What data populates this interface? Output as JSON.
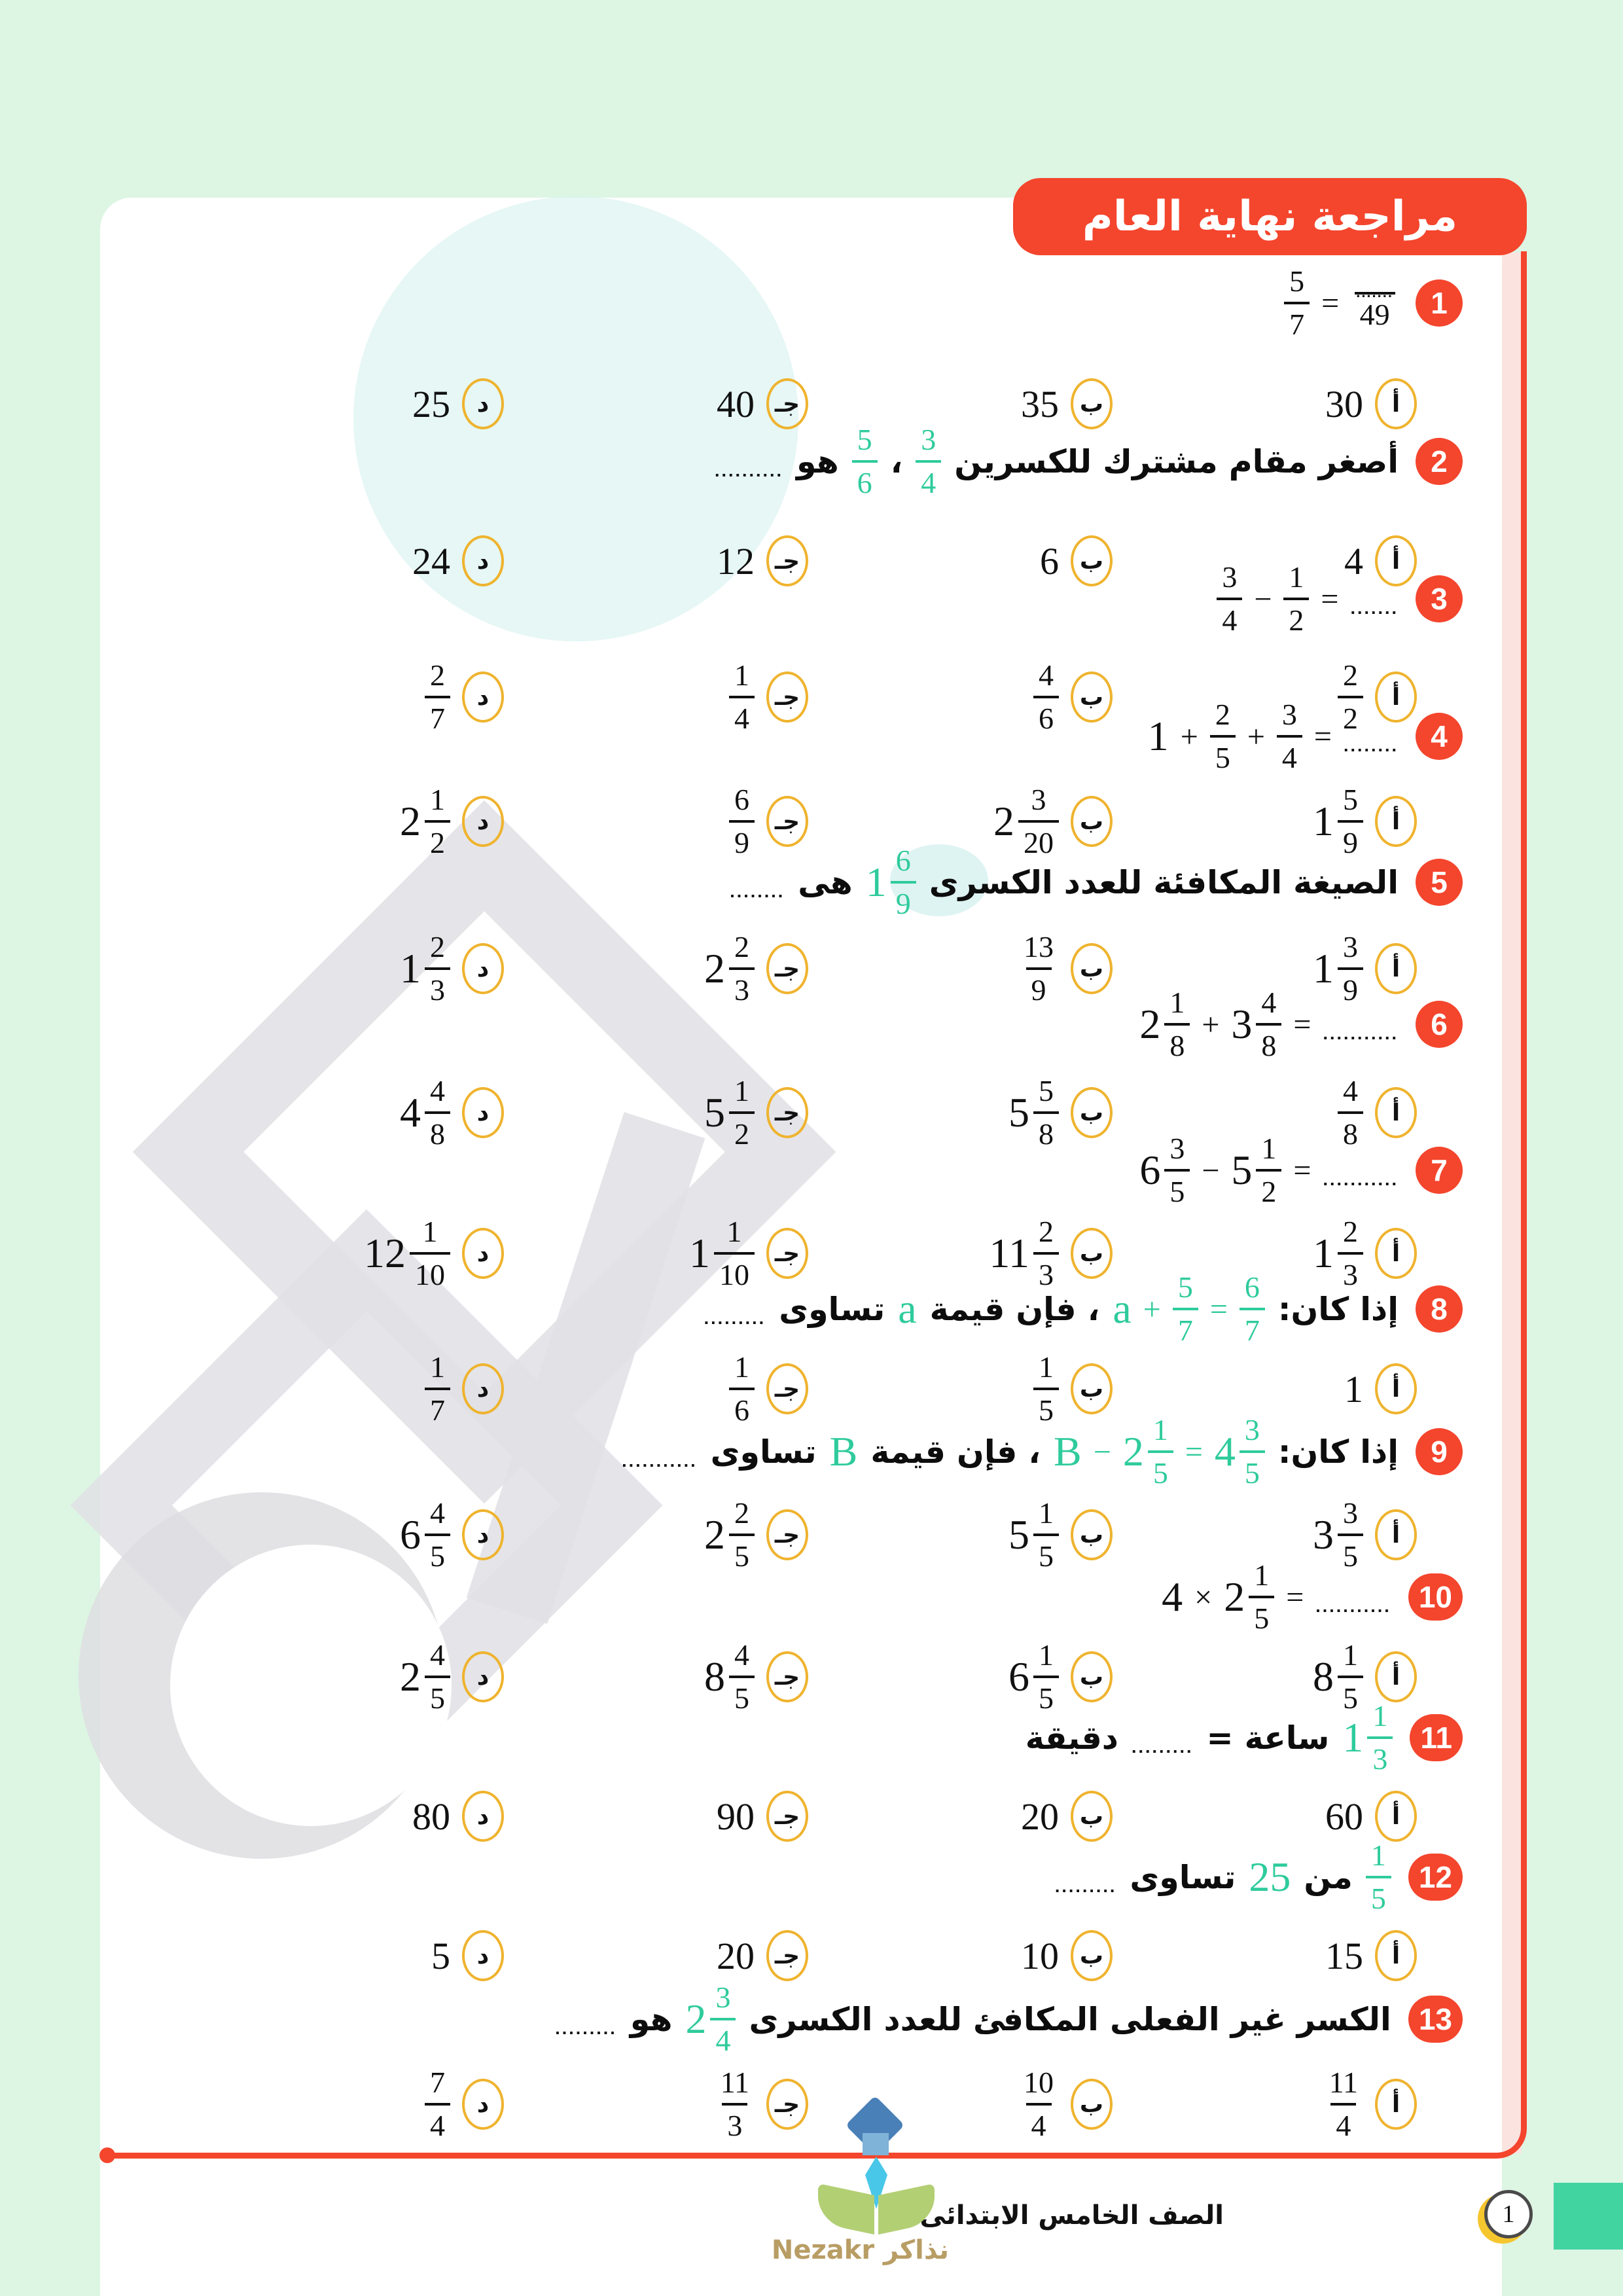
{
  "title": "مراجعة نهاية العام",
  "footer": {
    "grade_label": "الصف الخامس الابتدائى",
    "page_number": "1",
    "logo_text": "نذاكر Nezakr"
  },
  "colors": {
    "accent_red": "#f4452d",
    "accent_green": "#2fcb9c",
    "option_circle_yellow": "#efb32e",
    "page_background": "#ddf5e3",
    "pink_strip": "#fbe3e0",
    "teal_rect": "#41d4a1",
    "crescent_yellow": "#f6c62f"
  },
  "option_letters": [
    "أ",
    "ب",
    "جـ",
    "د"
  ],
  "questions": [
    {
      "number": "1",
      "content": [
        {
          "t": "eq",
          "items": [
            {
              "t": "frac",
              "n": "5",
              "d": "7"
            },
            {
              "t": "op",
              "v": "="
            },
            {
              "t": "frac",
              "n": ".......",
              "d": "49",
              "dn": true
            }
          ]
        }
      ],
      "options": [
        [
          {
            "t": "num",
            "v": "30"
          }
        ],
        [
          {
            "t": "num",
            "v": "35"
          }
        ],
        [
          {
            "t": "num",
            "v": "40"
          }
        ],
        [
          {
            "t": "num",
            "v": "25"
          }
        ]
      ]
    },
    {
      "number": "2",
      "content": [
        {
          "t": "text",
          "v": "أصغر مقام مشترك للكسرين"
        },
        {
          "t": "frac",
          "n": "3",
          "d": "4",
          "g": true
        },
        {
          "t": "text",
          "v": "،"
        },
        {
          "t": "frac",
          "n": "5",
          "d": "6",
          "g": true
        },
        {
          "t": "text",
          "v": "هو"
        },
        {
          "t": "dots",
          "v": ".........."
        }
      ],
      "options": [
        [
          {
            "t": "num",
            "v": "4"
          }
        ],
        [
          {
            "t": "num",
            "v": "6"
          }
        ],
        [
          {
            "t": "num",
            "v": "12"
          }
        ],
        [
          {
            "t": "num",
            "v": "24"
          }
        ]
      ]
    },
    {
      "number": "3",
      "content": [
        {
          "t": "eq",
          "items": [
            {
              "t": "frac",
              "n": "3",
              "d": "4"
            },
            {
              "t": "op",
              "v": "−"
            },
            {
              "t": "frac",
              "n": "1",
              "d": "2"
            },
            {
              "t": "op",
              "v": "="
            },
            {
              "t": "dots",
              "v": "......."
            }
          ]
        }
      ],
      "options": [
        [
          {
            "t": "frac",
            "n": "2",
            "d": "2"
          }
        ],
        [
          {
            "t": "frac",
            "n": "4",
            "d": "6"
          }
        ],
        [
          {
            "t": "frac",
            "n": "1",
            "d": "4"
          }
        ],
        [
          {
            "t": "frac",
            "n": "2",
            "d": "7"
          }
        ]
      ]
    },
    {
      "number": "4",
      "content": [
        {
          "t": "eq",
          "items": [
            {
              "t": "wh",
              "v": "1"
            },
            {
              "t": "op",
              "v": "+"
            },
            {
              "t": "frac",
              "n": "2",
              "d": "5"
            },
            {
              "t": "op",
              "v": "+"
            },
            {
              "t": "frac",
              "n": "3",
              "d": "4"
            },
            {
              "t": "op",
              "v": "="
            },
            {
              "t": "dots",
              "v": "........"
            }
          ]
        }
      ],
      "options": [
        [
          {
            "t": "mixed",
            "w": "1",
            "n": "5",
            "d": "9"
          }
        ],
        [
          {
            "t": "mixed",
            "w": "2",
            "n": "3",
            "d": "20"
          }
        ],
        [
          {
            "t": "frac",
            "n": "6",
            "d": "9"
          }
        ],
        [
          {
            "t": "mixed",
            "w": "2",
            "n": "1",
            "d": "2"
          }
        ]
      ]
    },
    {
      "number": "5",
      "content": [
        {
          "t": "text",
          "v": "الصيغة المكافئة للعدد الكسرى"
        },
        {
          "t": "mixed",
          "w": "1",
          "n": "6",
          "d": "9",
          "g": true
        },
        {
          "t": "text",
          "v": "هى"
        },
        {
          "t": "dots",
          "v": "........"
        }
      ],
      "options": [
        [
          {
            "t": "mixed",
            "w": "1",
            "n": "3",
            "d": "9"
          }
        ],
        [
          {
            "t": "frac",
            "n": "13",
            "d": "9"
          }
        ],
        [
          {
            "t": "mixed",
            "w": "2",
            "n": "2",
            "d": "3"
          }
        ],
        [
          {
            "t": "mixed",
            "w": "1",
            "n": "2",
            "d": "3"
          }
        ]
      ]
    },
    {
      "number": "6",
      "content": [
        {
          "t": "eq",
          "items": [
            {
              "t": "mixed",
              "w": "2",
              "n": "1",
              "d": "8"
            },
            {
              "t": "op",
              "v": "+"
            },
            {
              "t": "mixed",
              "w": "3",
              "n": "4",
              "d": "8"
            },
            {
              "t": "op",
              "v": "="
            },
            {
              "t": "dots",
              "v": "..........."
            }
          ]
        }
      ],
      "options": [
        [
          {
            "t": "frac",
            "n": "4",
            "d": "8"
          }
        ],
        [
          {
            "t": "mixed",
            "w": "5",
            "n": "5",
            "d": "8"
          }
        ],
        [
          {
            "t": "mixed",
            "w": "5",
            "n": "1",
            "d": "2"
          }
        ],
        [
          {
            "t": "mixed",
            "w": "4",
            "n": "4",
            "d": "8"
          }
        ]
      ]
    },
    {
      "number": "7",
      "content": [
        {
          "t": "eq",
          "items": [
            {
              "t": "mixed",
              "w": "6",
              "n": "3",
              "d": "5"
            },
            {
              "t": "op",
              "v": "−"
            },
            {
              "t": "mixed",
              "w": "5",
              "n": "1",
              "d": "2"
            },
            {
              "t": "op",
              "v": "="
            },
            {
              "t": "dots",
              "v": "..........."
            }
          ]
        }
      ],
      "options": [
        [
          {
            "t": "mixed",
            "w": "1",
            "n": "2",
            "d": "3"
          }
        ],
        [
          {
            "t": "mixed",
            "w": "11",
            "n": "2",
            "d": "3"
          }
        ],
        [
          {
            "t": "mixed",
            "w": "1",
            "n": "1",
            "d": "10"
          }
        ],
        [
          {
            "t": "mixed",
            "w": "12",
            "n": "1",
            "d": "10"
          }
        ]
      ]
    },
    {
      "number": "8",
      "content": [
        {
          "t": "text",
          "v": "إذا كان:"
        },
        {
          "t": "eq",
          "g": true,
          "items": [
            {
              "t": "sym",
              "v": "a"
            },
            {
              "t": "op",
              "v": "+"
            },
            {
              "t": "frac",
              "n": "5",
              "d": "7"
            },
            {
              "t": "op",
              "v": "="
            },
            {
              "t": "frac",
              "n": "6",
              "d": "7"
            }
          ]
        },
        {
          "t": "text",
          "v": "، فإن قيمة"
        },
        {
          "t": "sym",
          "v": "a",
          "g": true
        },
        {
          "t": "text",
          "v": "تساوى"
        },
        {
          "t": "dots",
          "v": "........."
        }
      ],
      "options": [
        [
          {
            "t": "num",
            "v": "1"
          }
        ],
        [
          {
            "t": "frac",
            "n": "1",
            "d": "5"
          }
        ],
        [
          {
            "t": "frac",
            "n": "1",
            "d": "6"
          }
        ],
        [
          {
            "t": "frac",
            "n": "1",
            "d": "7"
          }
        ]
      ]
    },
    {
      "number": "9",
      "content": [
        {
          "t": "text",
          "v": "إذا كان:"
        },
        {
          "t": "eq",
          "g": true,
          "items": [
            {
              "t": "sym",
              "v": "B"
            },
            {
              "t": "op",
              "v": "−"
            },
            {
              "t": "mixed",
              "w": "2",
              "n": "1",
              "d": "5"
            },
            {
              "t": "op",
              "v": "="
            },
            {
              "t": "mixed",
              "w": "4",
              "n": "3",
              "d": "5"
            }
          ]
        },
        {
          "t": "text",
          "v": "، فإن قيمة"
        },
        {
          "t": "sym",
          "v": "B",
          "g": true
        },
        {
          "t": "text",
          "v": "تساوى"
        },
        {
          "t": "dots",
          "v": "..........."
        }
      ],
      "options": [
        [
          {
            "t": "mixed",
            "w": "3",
            "n": "3",
            "d": "5"
          }
        ],
        [
          {
            "t": "mixed",
            "w": "5",
            "n": "1",
            "d": "5"
          }
        ],
        [
          {
            "t": "mixed",
            "w": "2",
            "n": "2",
            "d": "5"
          }
        ],
        [
          {
            "t": "mixed",
            "w": "6",
            "n": "4",
            "d": "5"
          }
        ]
      ]
    },
    {
      "number": "10",
      "content": [
        {
          "t": "eq",
          "items": [
            {
              "t": "wh",
              "v": "4"
            },
            {
              "t": "op",
              "v": "×"
            },
            {
              "t": "mixed",
              "w": "2",
              "n": "1",
              "d": "5"
            },
            {
              "t": "op",
              "v": "="
            },
            {
              "t": "dots",
              "v": "..........."
            }
          ]
        }
      ],
      "options": [
        [
          {
            "t": "mixed",
            "w": "8",
            "n": "1",
            "d": "5"
          }
        ],
        [
          {
            "t": "mixed",
            "w": "6",
            "n": "1",
            "d": "5"
          }
        ],
        [
          {
            "t": "mixed",
            "w": "8",
            "n": "4",
            "d": "5"
          }
        ],
        [
          {
            "t": "mixed",
            "w": "2",
            "n": "4",
            "d": "5"
          }
        ]
      ]
    },
    {
      "number": "11",
      "content": [
        {
          "t": "mixed",
          "w": "1",
          "n": "1",
          "d": "3",
          "g": true
        },
        {
          "t": "text",
          "v": "ساعة ="
        },
        {
          "t": "dots",
          "v": "........."
        },
        {
          "t": "text",
          "v": "دقيقة"
        }
      ],
      "options": [
        [
          {
            "t": "num",
            "v": "60"
          }
        ],
        [
          {
            "t": "num",
            "v": "20"
          }
        ],
        [
          {
            "t": "num",
            "v": "90"
          }
        ],
        [
          {
            "t": "num",
            "v": "80"
          }
        ]
      ]
    },
    {
      "number": "12",
      "content": [
        {
          "t": "frac",
          "n": "1",
          "d": "5",
          "g": true
        },
        {
          "t": "text",
          "v": "من"
        },
        {
          "t": "sym",
          "v": "25",
          "g": true
        },
        {
          "t": "text",
          "v": "تساوى"
        },
        {
          "t": "dots",
          "v": "........."
        }
      ],
      "options": [
        [
          {
            "t": "num",
            "v": "15"
          }
        ],
        [
          {
            "t": "num",
            "v": "10"
          }
        ],
        [
          {
            "t": "num",
            "v": "20"
          }
        ],
        [
          {
            "t": "num",
            "v": "5"
          }
        ]
      ]
    },
    {
      "number": "13",
      "content": [
        {
          "t": "text",
          "v": "الكسر غير الفعلى المكافئ للعدد الكسرى"
        },
        {
          "t": "mixed",
          "w": "2",
          "n": "3",
          "d": "4",
          "g": true
        },
        {
          "t": "text",
          "v": "هو"
        },
        {
          "t": "dots",
          "v": "........."
        }
      ],
      "options": [
        [
          {
            "t": "frac",
            "n": "11",
            "d": "4"
          }
        ],
        [
          {
            "t": "frac",
            "n": "10",
            "d": "4"
          }
        ],
        [
          {
            "t": "frac",
            "n": "11",
            "d": "3"
          }
        ],
        [
          {
            "t": "frac",
            "n": "7",
            "d": "4"
          }
        ]
      ]
    }
  ]
}
